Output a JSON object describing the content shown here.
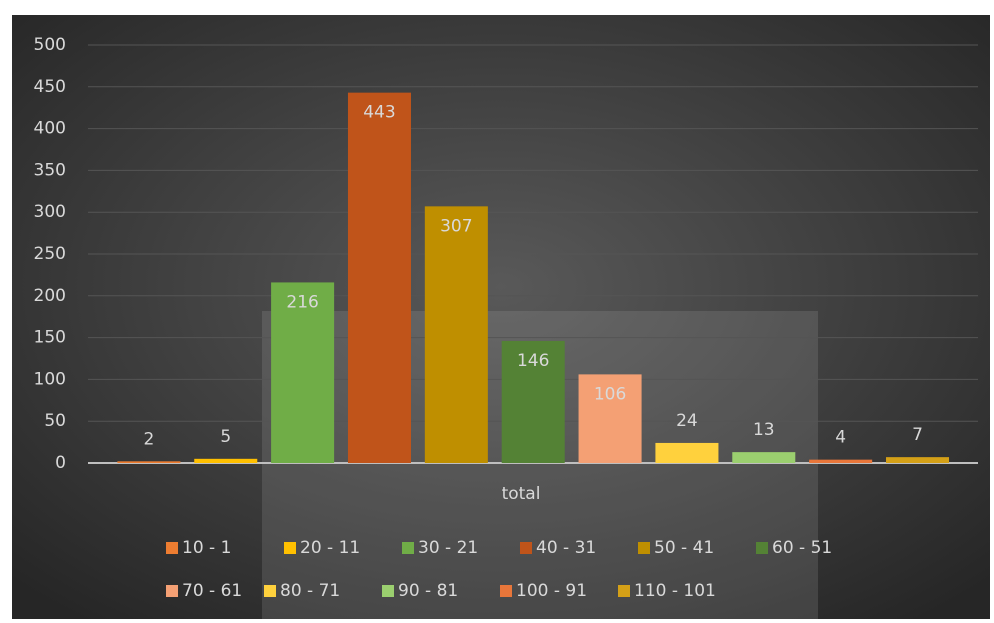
{
  "chart_data": {
    "type": "bar",
    "categories": [
      "total"
    ],
    "series": [
      {
        "name": "10 - 1",
        "color": "#ed7d31",
        "values": [
          2
        ]
      },
      {
        "name": "20 - 11",
        "color": "#ffc000",
        "values": [
          5
        ]
      },
      {
        "name": "30 - 21",
        "color": "#70ad47",
        "values": [
          216
        ]
      },
      {
        "name": "40 - 31",
        "color": "#c0541a",
        "values": [
          443
        ]
      },
      {
        "name": "50 - 41",
        "color": "#bf8f00",
        "values": [
          307
        ]
      },
      {
        "name": "60 - 51",
        "color": "#548235",
        "values": [
          146
        ]
      },
      {
        "name": "70 - 61",
        "color": "#f4a074",
        "values": [
          106
        ]
      },
      {
        "name": "80 - 71",
        "color": "#ffd13d",
        "values": [
          24
        ]
      },
      {
        "name": "90 - 81",
        "color": "#9bcf6f",
        "values": [
          13
        ]
      },
      {
        "name": "100 - 91",
        "color": "#e8763a",
        "values": [
          4
        ]
      },
      {
        "name": "110 - 101",
        "color": "#d4a017",
        "values": [
          7
        ]
      }
    ],
    "ylim": [
      0,
      500
    ],
    "yticks": [
      0,
      50,
      100,
      150,
      200,
      250,
      300,
      350,
      400,
      450,
      500
    ],
    "grid": true,
    "legend": "bottom"
  }
}
